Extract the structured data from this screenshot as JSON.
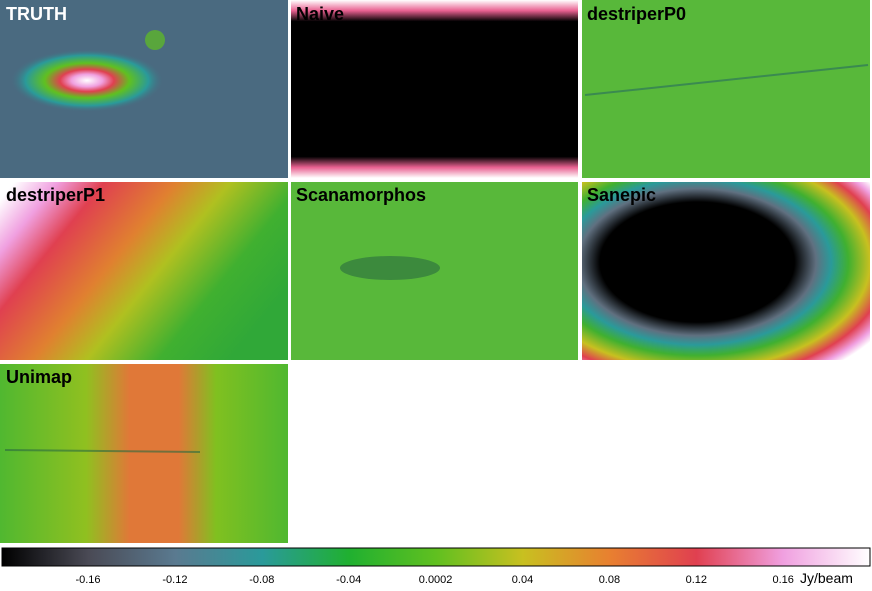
{
  "panels": [
    {
      "label": "TRUTH"
    },
    {
      "label": "Naive"
    },
    {
      "label": "destriperP0"
    },
    {
      "label": "destriperP1"
    },
    {
      "label": "Scanamorphos"
    },
    {
      "label": "Sanepic"
    },
    {
      "label": "Unimap"
    }
  ],
  "colorbar": {
    "ticks": [
      "-0.16",
      "-0.12",
      "-0.08",
      "-0.04",
      "0.0002",
      "0.04",
      "0.08",
      "0.12",
      "0.16"
    ],
    "unit": "Jy/beam"
  }
}
